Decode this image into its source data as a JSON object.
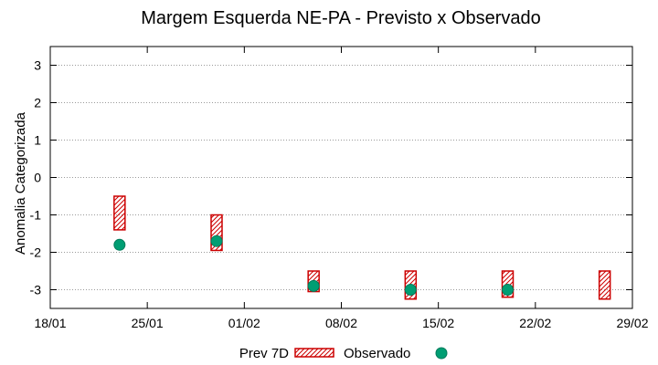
{
  "chart_data": {
    "type": "scatter",
    "title": "Margem Esquerda NE-PA - Previsto x Observado",
    "xlabel": "",
    "ylabel": "Anomalia Categorizada",
    "ylim": [
      -3.5,
      3.5
    ],
    "yticks": [
      3,
      2,
      1,
      0,
      -1,
      -2,
      -3
    ],
    "ytick_labels": [
      "3",
      "2",
      "1",
      "0",
      "-1",
      "-2",
      "-3"
    ],
    "xlim_days": [
      0,
      42
    ],
    "xticks_days": [
      0,
      7,
      14,
      21,
      28,
      35,
      42
    ],
    "xtick_labels": [
      "18/01",
      "25/01",
      "01/02",
      "08/02",
      "15/02",
      "22/02",
      "29/02"
    ],
    "grid": "horizontal dotted",
    "legend_position": "bottom-center",
    "series": [
      {
        "name": "Prev 7D",
        "kind": "range-box",
        "color": "#cc0000",
        "fill": "red diagonal hatch",
        "points": [
          {
            "x_day": 5,
            "low": -1.4,
            "high": -0.5
          },
          {
            "x_day": 12,
            "low": -1.95,
            "high": -1.0
          },
          {
            "x_day": 19,
            "low": -3.05,
            "high": -2.5
          },
          {
            "x_day": 26,
            "low": -3.25,
            "high": -2.5
          },
          {
            "x_day": 33,
            "low": -3.2,
            "high": -2.5
          },
          {
            "x_day": 40,
            "low": -3.25,
            "high": -2.5
          }
        ]
      },
      {
        "name": "Observado",
        "kind": "point",
        "color": "#009e73",
        "points": [
          {
            "x_day": 5,
            "y": -1.8
          },
          {
            "x_day": 12,
            "y": -1.7
          },
          {
            "x_day": 19,
            "y": -2.9
          },
          {
            "x_day": 26,
            "y": -3.0
          },
          {
            "x_day": 33,
            "y": -3.0
          }
        ]
      }
    ]
  }
}
